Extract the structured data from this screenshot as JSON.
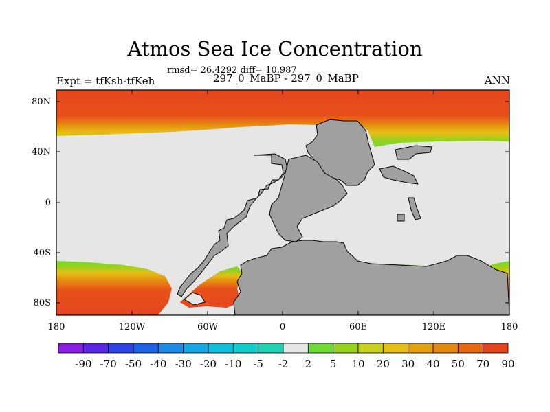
{
  "title": "Atmos Sea Ice Concentration",
  "stats": "rmsd= 26.4292 diff= 10.987",
  "left_label": "Expt = tfKsh-tfKeh",
  "center_label": "297_0_MaBP - 297_0_MaBP",
  "right_label": "ANN",
  "lat_ticks": [
    "80N",
    "40N",
    "0",
    "40S",
    "80S"
  ],
  "lon_ticks": [
    "180",
    "120W",
    "60W",
    "0",
    "60E",
    "120E",
    "180"
  ],
  "colorbar": {
    "labels": [
      "-90",
      "-70",
      "-50",
      "-40",
      "-30",
      "-20",
      "-10",
      "-5",
      "-2",
      "2",
      "5",
      "10",
      "20",
      "30",
      "40",
      "50",
      "70",
      "90"
    ],
    "colors": [
      "#8c1ee6",
      "#5a28e6",
      "#2f46e6",
      "#1e64e6",
      "#1e8ce6",
      "#14a5e6",
      "#0fbedc",
      "#0fcdc8",
      "#1ed2b4",
      "#e6e6e6",
      "#6edc32",
      "#96d21e",
      "#c8d21e",
      "#e6be14",
      "#e6a00f",
      "#e6870f",
      "#e6690f",
      "#e6461e"
    ]
  },
  "colors": {
    "land": "#a0a0a0",
    "ocean_zero": "#e6e6e6",
    "ice_high": "#e6461e"
  }
}
